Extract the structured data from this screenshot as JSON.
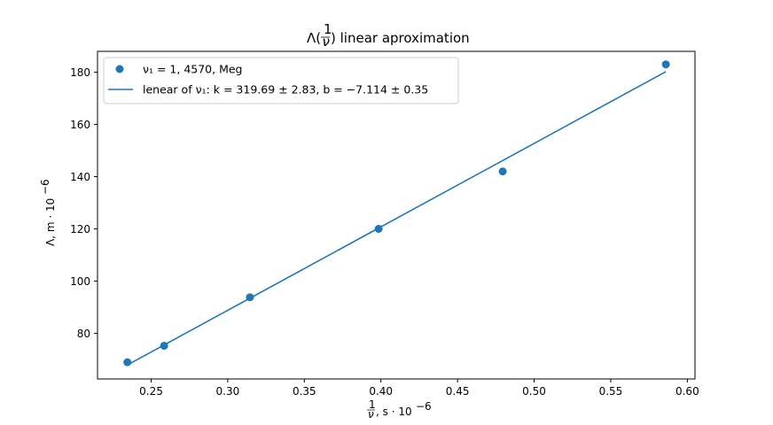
{
  "chart_data": {
    "type": "scatter",
    "title": {
      "prefix": "Λ(",
      "frac_num": "1",
      "frac_den": "ν",
      "suffix": ") linear aproximation"
    },
    "xlabel": {
      "frac_num": "1",
      "frac_den": "ν",
      "text": ", s · 10",
      "exp": "−6"
    },
    "ylabel": {
      "text": "Λ, m · 10",
      "exp": "−6"
    },
    "xlim": [
      0.215,
      0.605
    ],
    "ylim": [
      62.5,
      188
    ],
    "xticks": [
      "0.25",
      "0.30",
      "0.35",
      "0.40",
      "0.45",
      "0.50",
      "0.55",
      "0.60"
    ],
    "yticks": [
      "80",
      "100",
      "120",
      "140",
      "160",
      "180"
    ],
    "grid": false,
    "legend_position": "top-left",
    "color": "#1f77b4",
    "series": [
      {
        "kind": "points",
        "label": "ν₁ = 1, 4570, Meg",
        "x": [
          0.2345,
          0.2585,
          0.3145,
          0.3985,
          0.4795,
          0.586
        ],
        "y": [
          68.9,
          75.2,
          93.8,
          120.0,
          142.0,
          183.0
        ]
      },
      {
        "kind": "line",
        "label": "lenear of ν₁: k = 319.69 ± 2.83, b = −7.114 ± 0.35",
        "x": [
          0.2345,
          0.2585,
          0.3145,
          0.3985,
          0.2345,
          0.2585,
          0.3145,
          0.3985,
          0.4795,
          0.586
        ],
        "y": [
          67.86,
          75.53,
          93.43,
          120.29,
          67.86,
          75.53,
          93.43,
          120.29,
          146.18,
          180.22
        ]
      }
    ]
  }
}
